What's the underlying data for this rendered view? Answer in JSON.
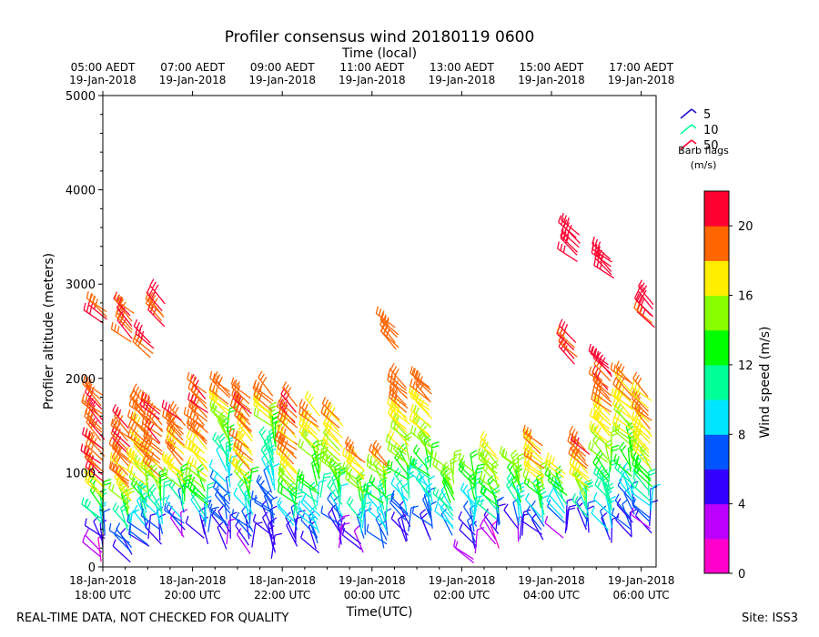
{
  "chart_data": {
    "type": "wind-barb-profile",
    "title": "Profiler consensus wind 20180119 0600",
    "top_axis_label": "Time (local)",
    "top_ticks": [
      {
        "line1": "05:00 AEDT",
        "line2": "19-Jan-2018",
        "hour": 18
      },
      {
        "line1": "07:00 AEDT",
        "line2": "19-Jan-2018",
        "hour": 20
      },
      {
        "line1": "09:00 AEDT",
        "line2": "19-Jan-2018",
        "hour": 22
      },
      {
        "line1": "11:00 AEDT",
        "line2": "19-Jan-2018",
        "hour": 24
      },
      {
        "line1": "13:00 AEDT",
        "line2": "19-Jan-2018",
        "hour": 26
      },
      {
        "line1": "15:00 AEDT",
        "line2": "19-Jan-2018",
        "hour": 28
      },
      {
        "line1": "17:00 AEDT",
        "line2": "19-Jan-2018",
        "hour": 30
      }
    ],
    "x_label": "Time(UTC)",
    "x_ticks": [
      {
        "line1": "18-Jan-2018",
        "line2": "18:00 UTC",
        "hour": 18
      },
      {
        "line1": "18-Jan-2018",
        "line2": "20:00 UTC",
        "hour": 20
      },
      {
        "line1": "18-Jan-2018",
        "line2": "22:00 UTC",
        "hour": 22
      },
      {
        "line1": "19-Jan-2018",
        "line2": "00:00 UTC",
        "hour": 24
      },
      {
        "line1": "19-Jan-2018",
        "line2": "02:00 UTC",
        "hour": 26
      },
      {
        "line1": "19-Jan-2018",
        "line2": "04:00 UTC",
        "hour": 28
      },
      {
        "line1": "19-Jan-2018",
        "line2": "06:00 UTC",
        "hour": 30
      }
    ],
    "x_range_hours": [
      18,
      30.3
    ],
    "y_label": "Profiler altitude (meters)",
    "y_ticks": [
      0,
      1000,
      2000,
      3000,
      4000,
      5000
    ],
    "y_range": [
      0,
      5000
    ],
    "legend_title": "Barb flags\n(m/s)",
    "legend_entries": [
      {
        "label": "5",
        "color": "#1a0fd6"
      },
      {
        "label": "10",
        "color": "#00ff99"
      },
      {
        "label": "50",
        "color": "#ff0030"
      }
    ],
    "colorbar_label": "Wind speed (m/s)",
    "colorbar_ticks": [
      0,
      4,
      8,
      12,
      16,
      20
    ],
    "colorbar_range": [
      0,
      22
    ],
    "colorbar_colors": [
      "#ff00cc",
      "#bb00ff",
      "#3300ff",
      "#0055ff",
      "#00e5ff",
      "#00ff99",
      "#00ff00",
      "#88ff00",
      "#ffee00",
      "#ff6600",
      "#ff0030"
    ],
    "columns": [
      {
        "t": 18.0,
        "z0": 60,
        "z1": 1850,
        "low": 2,
        "mid": 20,
        "high": 20
      },
      {
        "t": 18.05,
        "z0": 2580,
        "z1": 2720,
        "low": 20,
        "mid": 20,
        "high": 20
      },
      {
        "t": 18.6,
        "z0": 70,
        "z1": 1500,
        "low": 4,
        "mid": 18,
        "high": 20
      },
      {
        "t": 18.65,
        "z0": 2380,
        "z1": 2700,
        "low": 20,
        "mid": 20,
        "high": 20
      },
      {
        "t": 19.0,
        "z0": 200,
        "z1": 1700,
        "low": 5,
        "mid": 17,
        "high": 20
      },
      {
        "t": 19.1,
        "z0": 2220,
        "z1": 2380,
        "low": 20,
        "mid": 20,
        "high": 20
      },
      {
        "t": 19.3,
        "z0": 250,
        "z1": 1650,
        "low": 4,
        "mid": 18,
        "high": 20
      },
      {
        "t": 19.35,
        "z0": 2550,
        "z1": 2780,
        "low": 20,
        "mid": 20,
        "high": 20
      },
      {
        "t": 19.8,
        "z0": 300,
        "z1": 1600,
        "low": 3,
        "mid": 17,
        "high": 20
      },
      {
        "t": 20.3,
        "z0": 250,
        "z1": 1850,
        "low": 5,
        "mid": 18,
        "high": 20
      },
      {
        "t": 20.8,
        "z0": 200,
        "z1": 1900,
        "low": 4,
        "mid": 10,
        "high": 20
      },
      {
        "t": 21.3,
        "z0": 150,
        "z1": 1800,
        "low": 3,
        "mid": 17,
        "high": 20
      },
      {
        "t": 21.8,
        "z0": 100,
        "z1": 1850,
        "low": 4,
        "mid": 9,
        "high": 20
      },
      {
        "t": 22.3,
        "z0": 200,
        "z1": 1700,
        "low": 4,
        "mid": 17,
        "high": 20
      },
      {
        "t": 22.8,
        "z0": 150,
        "z1": 1600,
        "low": 5,
        "mid": 13,
        "high": 19
      },
      {
        "t": 23.3,
        "z0": 200,
        "z1": 1550,
        "low": 3,
        "mid": 14,
        "high": 19
      },
      {
        "t": 23.8,
        "z0": 150,
        "z1": 1150,
        "low": 4,
        "mid": 12,
        "high": 20
      },
      {
        "t": 24.3,
        "z0": 200,
        "z1": 1100,
        "low": 6,
        "mid": 11,
        "high": 19
      },
      {
        "t": 24.55,
        "z0": 2300,
        "z1": 2540,
        "low": 19,
        "mid": 19,
        "high": 19
      },
      {
        "t": 24.8,
        "z0": 250,
        "z1": 1950,
        "low": 4,
        "mid": 15,
        "high": 20
      },
      {
        "t": 25.3,
        "z0": 300,
        "z1": 1950,
        "low": 5,
        "mid": 14,
        "high": 19
      },
      {
        "t": 25.8,
        "z0": 350,
        "z1": 1050,
        "low": 7,
        "mid": 13,
        "high": 16
      },
      {
        "t": 26.3,
        "z0": 50,
        "z1": 1000,
        "low": 3,
        "mid": 9,
        "high": 15
      },
      {
        "t": 26.8,
        "z0": 200,
        "z1": 1200,
        "low": 2,
        "mid": 14,
        "high": 17
      },
      {
        "t": 27.3,
        "z0": 250,
        "z1": 1100,
        "low": 3,
        "mid": 12,
        "high": 16
      },
      {
        "t": 27.8,
        "z0": 300,
        "z1": 1300,
        "low": 5,
        "mid": 15,
        "high": 19
      },
      {
        "t": 28.3,
        "z0": 300,
        "z1": 1000,
        "low": 4,
        "mid": 10,
        "high": 18
      },
      {
        "t": 28.55,
        "z0": 2150,
        "z1": 2400,
        "low": 20,
        "mid": 20,
        "high": 20
      },
      {
        "t": 28.6,
        "z0": 3250,
        "z1": 3550,
        "low": 21,
        "mid": 21,
        "high": 21
      },
      {
        "t": 28.8,
        "z0": 350,
        "z1": 1250,
        "low": 5,
        "mid": 16,
        "high": 20
      },
      {
        "t": 29.3,
        "z0": 250,
        "z1": 2150,
        "low": 6,
        "mid": 16,
        "high": 21
      },
      {
        "t": 29.35,
        "z0": 3050,
        "z1": 3300,
        "low": 21,
        "mid": 21,
        "high": 21
      },
      {
        "t": 29.8,
        "z0": 300,
        "z1": 2000,
        "low": 5,
        "mid": 14,
        "high": 19
      },
      {
        "t": 30.2,
        "z0": 350,
        "z1": 1800,
        "low": 4,
        "mid": 16,
        "high": 19
      },
      {
        "t": 30.25,
        "z0": 2550,
        "z1": 2780,
        "low": 20,
        "mid": 20,
        "high": 20
      }
    ]
  },
  "footer": {
    "left": "REAL-TIME DATA, NOT CHECKED FOR QUALITY",
    "right": "Site: ISS3"
  }
}
